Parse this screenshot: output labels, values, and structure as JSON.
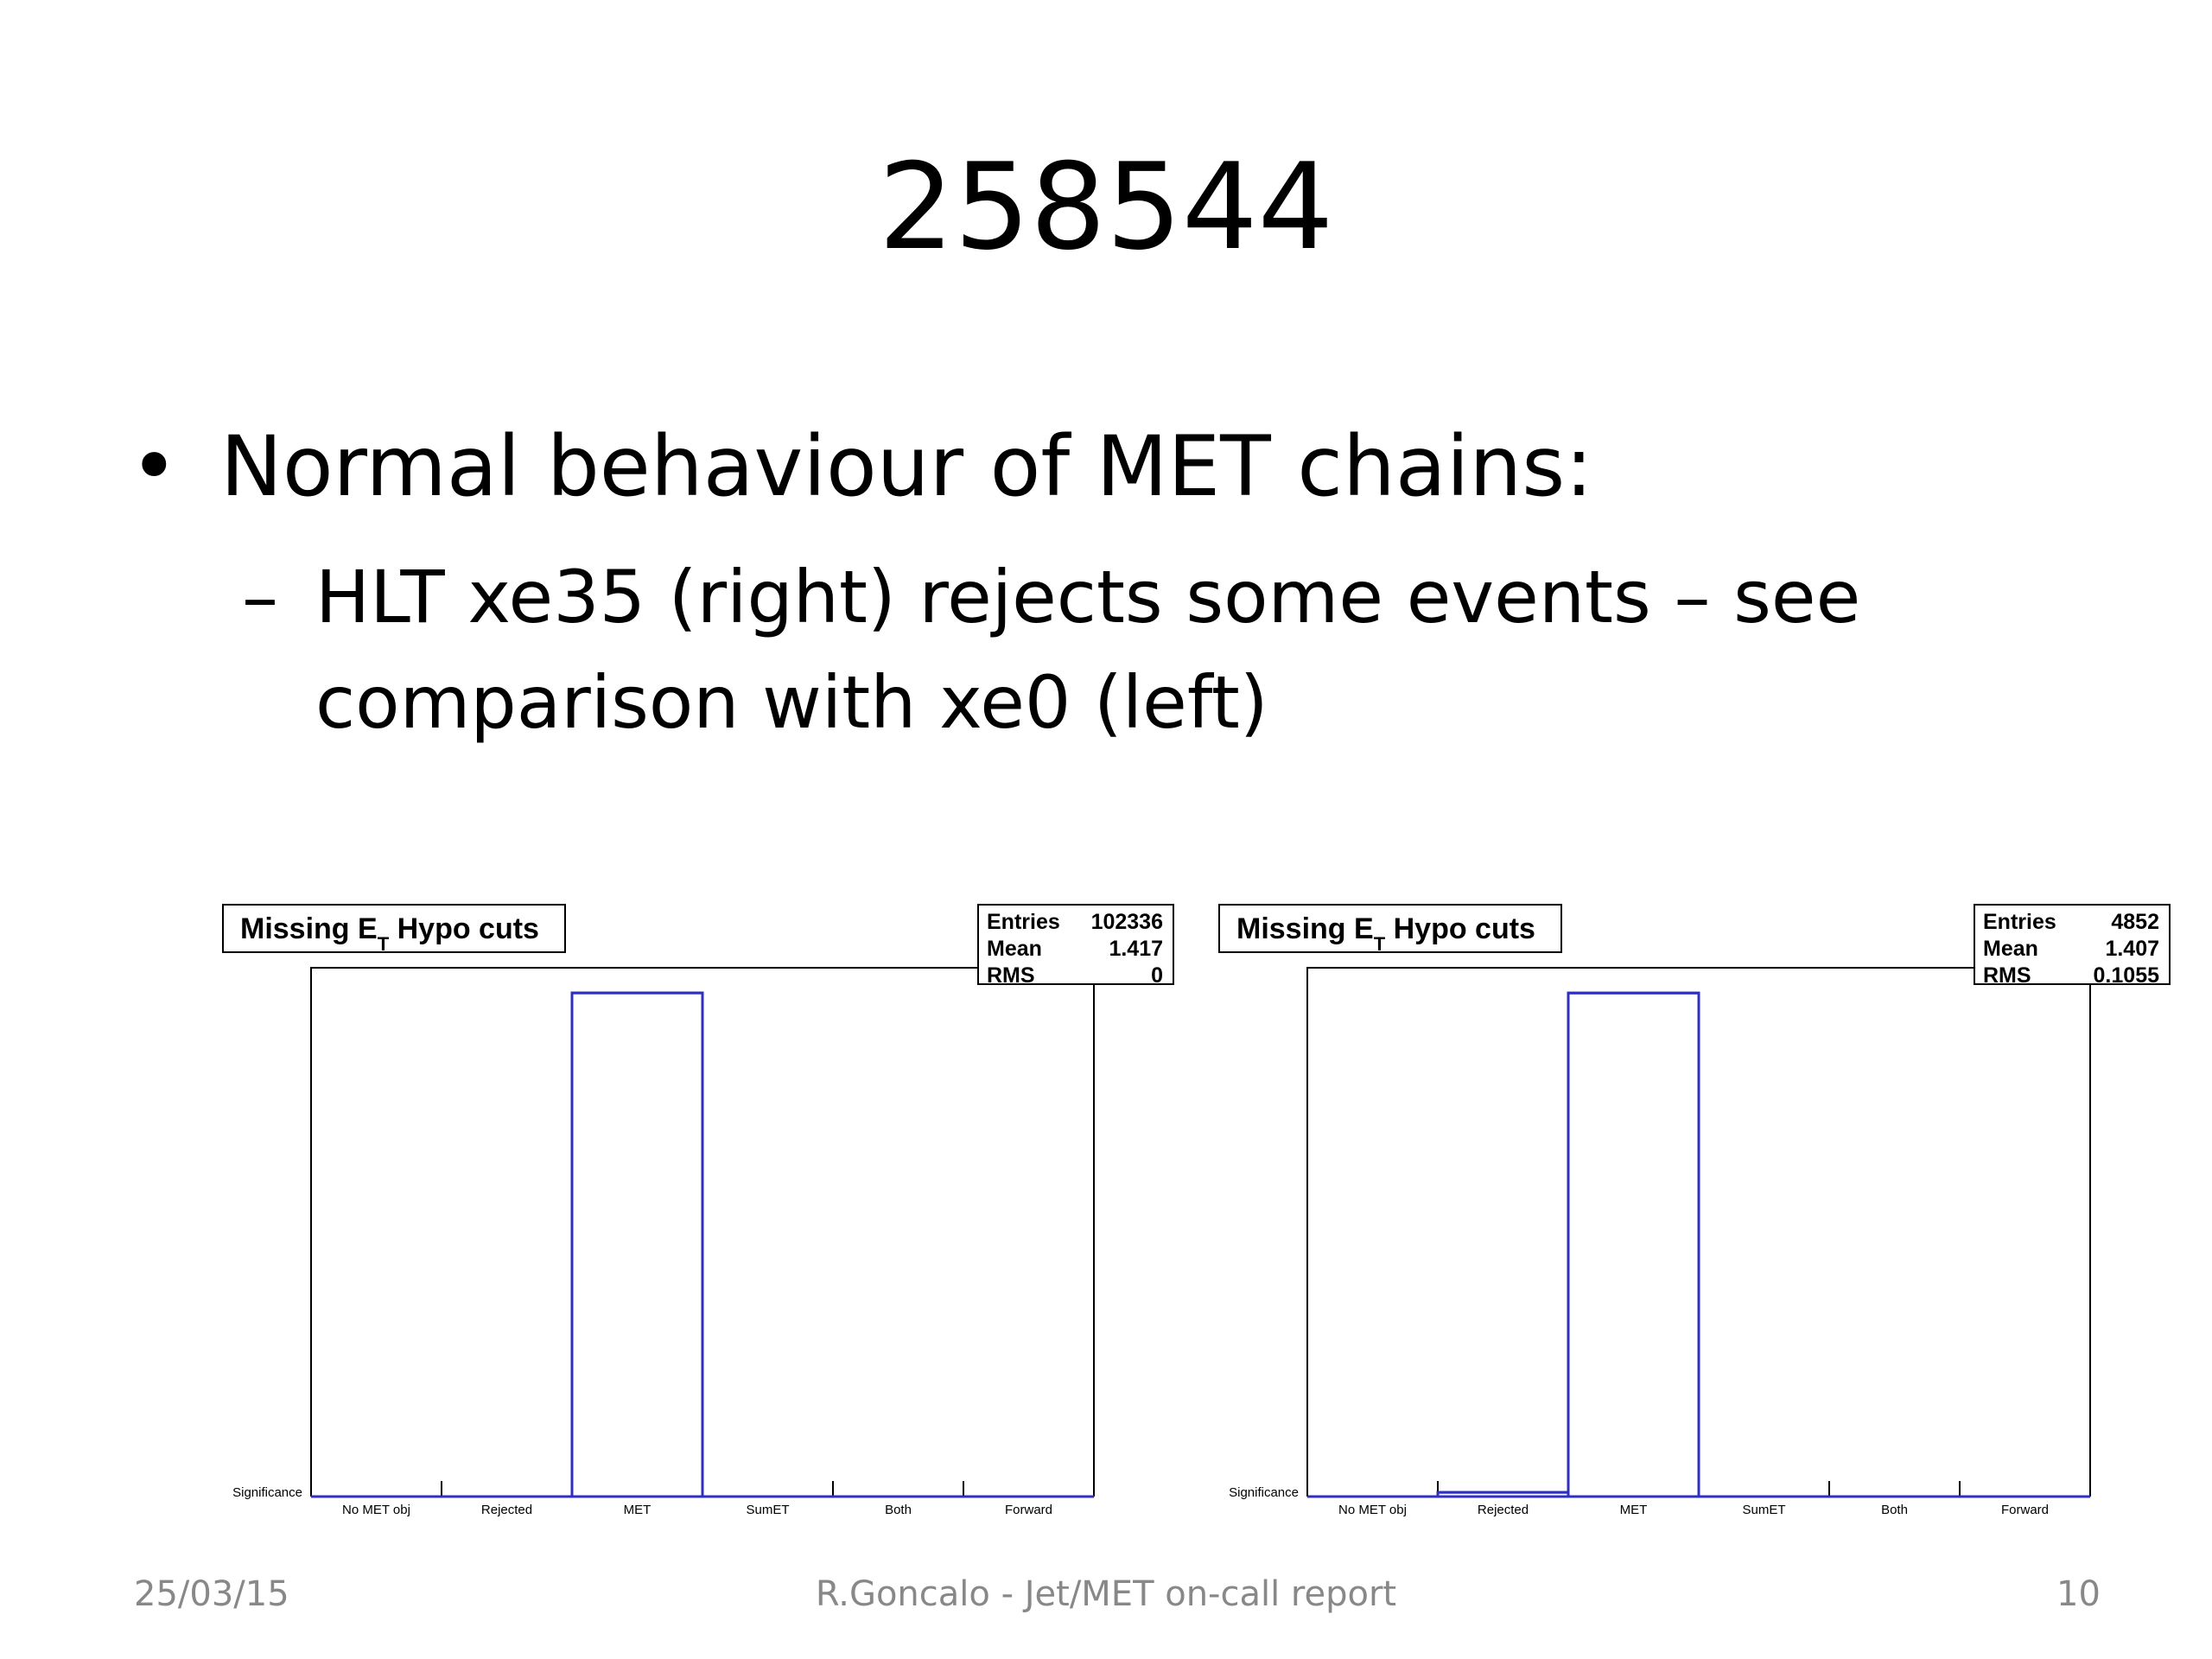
{
  "slide": {
    "title": "258544",
    "bullet_symbol": "•",
    "bullet": "Normal behaviour of MET chains:",
    "sub_dash": "–",
    "sub_bullet": "HLT xe35 (right) rejects some events – see comparison with xe0 (left)"
  },
  "footer": {
    "date": "25/03/15",
    "center": "R.Goncalo - Jet/MET on-call report",
    "page": "10"
  },
  "chart_data": [
    {
      "type": "bar",
      "title_main": "Missing E",
      "title_sub": "T",
      "title_tail": " Hypo cuts",
      "categories": [
        "No MET obj",
        "Rejected",
        "MET",
        "SumET",
        "Both",
        "Forward"
      ],
      "values": [
        0,
        0,
        102336,
        0,
        0,
        0
      ],
      "ylim": [
        0,
        107453
      ],
      "ylabel": "Significance",
      "line_color": "#3030c0",
      "stats": [
        {
          "label": "Entries",
          "value": "102336"
        },
        {
          "label": "Mean",
          "value": "1.417"
        },
        {
          "label": "RMS",
          "value": "0"
        }
      ]
    },
    {
      "type": "bar",
      "title_main": "Missing E",
      "title_sub": "T",
      "title_tail": " Hypo cuts",
      "categories": [
        "No MET obj",
        "Rejected",
        "MET",
        "SumET",
        "Both",
        "Forward"
      ],
      "values": [
        0,
        40,
        4812,
        0,
        0,
        0
      ],
      "ylim": [
        0,
        5053
      ],
      "ylabel": "Significance",
      "line_color": "#3030c0",
      "stats": [
        {
          "label": "Entries",
          "value": "4852"
        },
        {
          "label": "Mean",
          "value": "1.407"
        },
        {
          "label": "RMS",
          "value": "0.1055"
        }
      ]
    }
  ]
}
